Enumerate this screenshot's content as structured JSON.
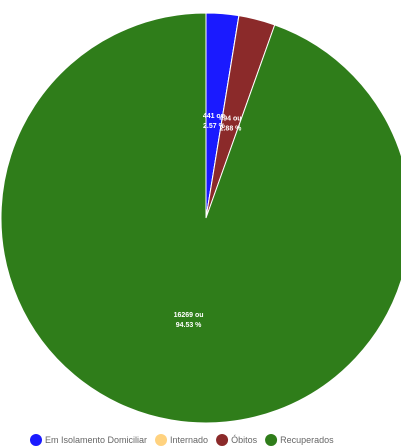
{
  "chart_data": {
    "type": "pie",
    "title": "",
    "legend_position": "bottom",
    "slices": [
      {
        "name": "Em Isolamento Domiciliar",
        "value": 441,
        "color": "#1a1aff",
        "label_value": "441 ou",
        "label_pct": "2.57 %"
      },
      {
        "name": "Internado",
        "value": 1,
        "color": "#ffd27f",
        "label_value": "",
        "label_pct": ""
      },
      {
        "name": "Óbitos",
        "value": 494,
        "color": "#8b2a2a",
        "label_value": "494 ou",
        "label_pct": "2.88 %"
      },
      {
        "name": "Recuperados",
        "value": 16269,
        "color": "#2f7d1a",
        "label_value": "16269 ou",
        "label_pct": "94.53 %"
      }
    ]
  }
}
